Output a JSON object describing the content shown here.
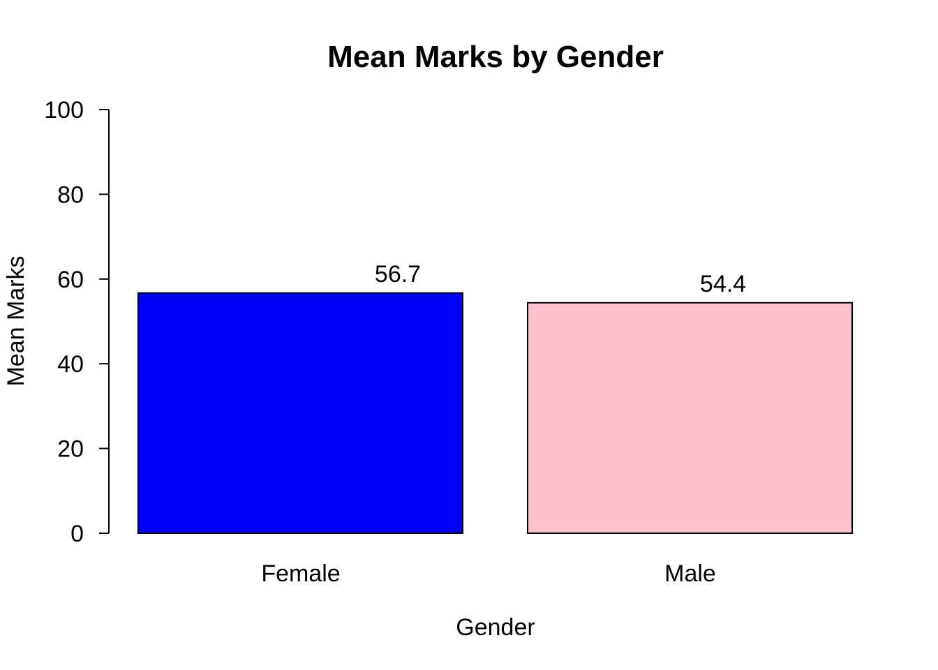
{
  "chart_data": {
    "type": "bar",
    "title": "Mean Marks by Gender",
    "xlabel": "Gender",
    "ylabel": "Mean Marks",
    "categories": [
      "Female",
      "Male"
    ],
    "values": [
      56.7,
      54.4
    ],
    "data_labels": [
      "56.7",
      "54.4"
    ],
    "colors": [
      "#0000ff",
      "#ffc0cb"
    ],
    "ylim": [
      0,
      100
    ],
    "yticks": [
      0,
      20,
      40,
      60,
      80,
      100
    ],
    "grid": false,
    "legend": "none"
  }
}
